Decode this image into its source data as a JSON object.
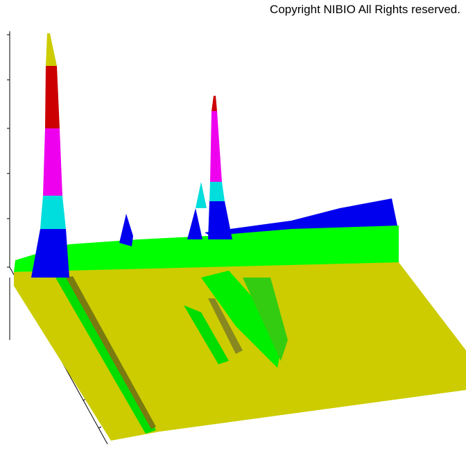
{
  "header": {
    "copyright": "Copyright NIBIO All Rights reserved."
  }
}
